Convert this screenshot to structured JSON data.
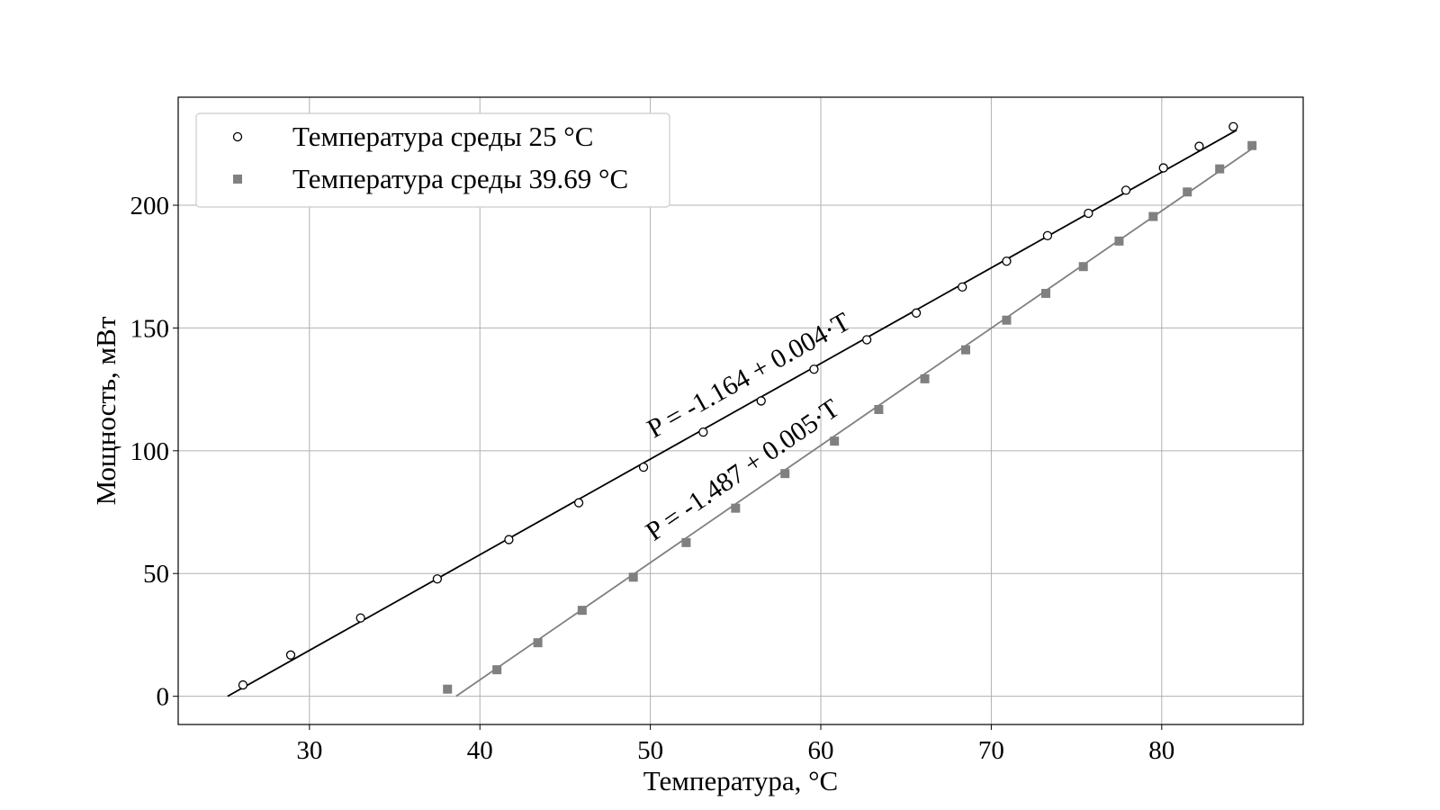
{
  "chart_data": {
    "type": "scatter",
    "xlabel": "Температура, °C",
    "ylabel": "Мощность, мВт",
    "xlim": [
      22.3,
      88.3
    ],
    "ylim": [
      -11.5,
      244
    ],
    "xticks": [
      30,
      40,
      50,
      60,
      70,
      80
    ],
    "yticks": [
      0,
      50,
      100,
      150,
      200
    ],
    "grid": true,
    "legend_position": "top-left",
    "series": [
      {
        "name": "Температура среды 25 °C",
        "marker": "circle-open",
        "color": "#000000",
        "x": [
          26.1,
          28.9,
          33.0,
          37.5,
          41.7,
          45.8,
          49.6,
          53.1,
          56.5,
          59.6,
          62.7,
          65.6,
          68.3,
          70.9,
          73.3,
          75.7,
          77.9,
          80.1,
          82.2,
          84.2
        ],
        "y": [
          4.6,
          16.8,
          31.9,
          47.8,
          63.8,
          78.8,
          93.3,
          107.6,
          120.3,
          133.2,
          145.2,
          156.1,
          166.7,
          177.2,
          187.6,
          196.7,
          206.1,
          215.2,
          224.0,
          232.0
        ]
      },
      {
        "name": "Температура среды 39.69 °C",
        "marker": "square",
        "color": "#808080",
        "x": [
          38.1,
          41.0,
          43.4,
          46.0,
          49.0,
          52.1,
          55.0,
          57.9,
          60.8,
          63.4,
          66.1,
          68.5,
          70.9,
          73.2,
          75.4,
          77.5,
          79.5,
          81.5,
          83.4,
          85.3
        ],
        "y": [
          2.9,
          10.8,
          21.8,
          35.0,
          48.5,
          62.6,
          76.6,
          90.7,
          103.9,
          116.8,
          129.3,
          141.1,
          153.2,
          164.1,
          175.0,
          185.4,
          195.4,
          205.4,
          214.8,
          224.3
        ]
      }
    ],
    "fits": [
      {
        "label": "P = -1.164 + 0.004·T",
        "color": "#000000",
        "x": [
          25.2,
          84.4
        ],
        "y": [
          0.0,
          230.6
        ]
      },
      {
        "label": "P = -1.487 + 0.005·T",
        "color": "#808080",
        "x": [
          38.6,
          85.3
        ],
        "y": [
          0.0,
          223.0
        ]
      }
    ]
  }
}
